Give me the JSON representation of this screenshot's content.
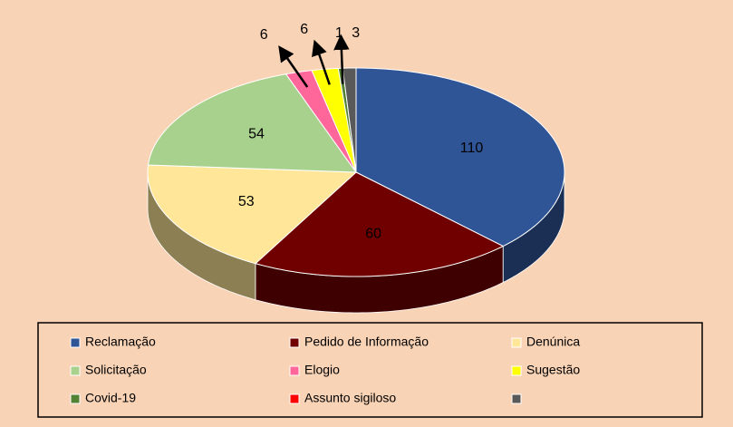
{
  "chart_data": {
    "type": "pie",
    "categories": [
      "Reclamação",
      "Pedido de Informação",
      "Denúnica",
      "Solicitação",
      "Elogio",
      "Sugestão",
      "Covid-19",
      "Assunto sigiloso",
      null
    ],
    "values": [
      110,
      60,
      53,
      54,
      6,
      6,
      1,
      0,
      3
    ],
    "colors": [
      "#2f5597",
      "#700000",
      "#ffe699",
      "#a9d18e",
      "#ff6699",
      "#ffff00",
      "#548235",
      "#ff0000",
      "#595959"
    ],
    "legend": "bottom"
  }
}
